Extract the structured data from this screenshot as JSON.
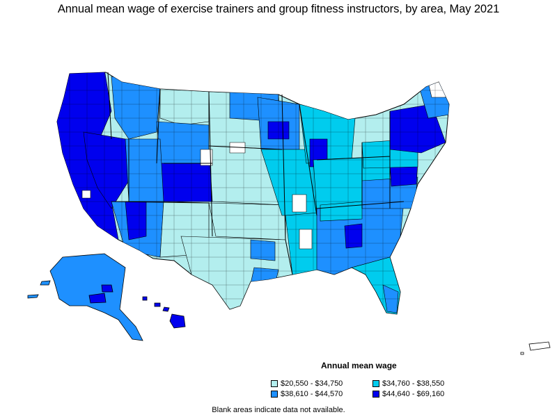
{
  "title": "Annual mean wage of exercise trainers and group fitness instructors, by area, May 2021",
  "legend": {
    "title": "Annual mean wage",
    "items": [
      {
        "label": "$20,550 - $34,750",
        "color": "#b3eeee"
      },
      {
        "label": "$34,760 - $38,550",
        "color": "#00ccee"
      },
      {
        "label": "$38,610 - $44,570",
        "color": "#1e90ff"
      },
      {
        "label": "$44,640 - $69,160",
        "color": "#0000ee"
      }
    ]
  },
  "note": "Blank areas indicate data not available.",
  "colors": {
    "border": "#000000",
    "blank": "#ffffff"
  }
}
